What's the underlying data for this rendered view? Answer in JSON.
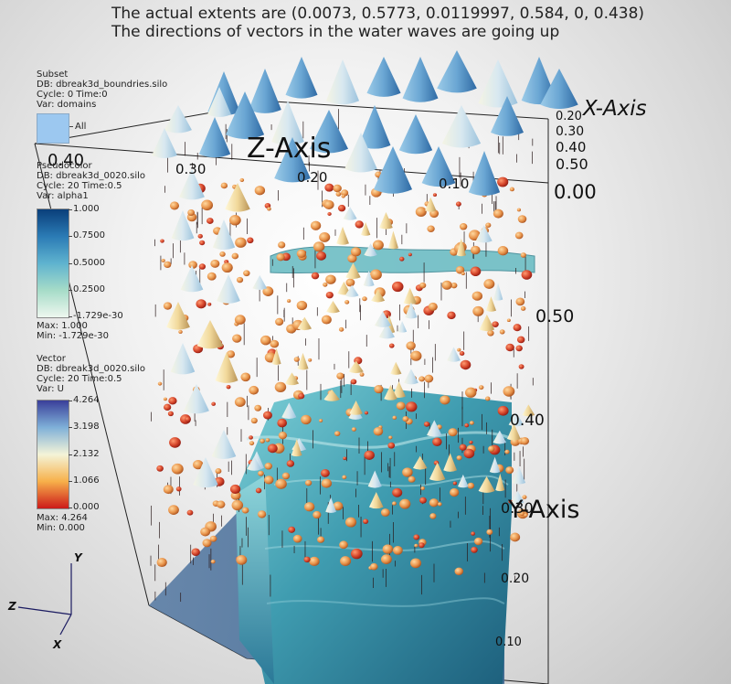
{
  "annotations": {
    "extents_text": "The actual extents are (0.0073, 0.5773, 0.0119997, 0.584, 0, 0.438)",
    "directions_text": "The directions of vectors in the water waves are going up"
  },
  "legend_subset": {
    "plot_type": "Subset",
    "db": "DB: dbreak3d_boundries.silo",
    "cycle_time": "Cycle: 0      Time:0",
    "var": "Var: domains",
    "item_label": "All",
    "swatch_color": "#9cc8f0"
  },
  "legend_pseudocolor": {
    "plot_type": "Pseudocolor",
    "db": "DB: dbreak3d_0020.silo",
    "cycle_time": "Cycle: 20     Time:0.5",
    "var": "Var: alpha1",
    "ticks": [
      "1.000",
      "0.7500",
      "0.5000",
      "0.2500",
      "-1.729e-30"
    ],
    "max": "Max:  1.000",
    "min": "Min:  -1.729e-30",
    "colors": [
      "#0a3f7a",
      "#2b7bb5",
      "#5fb3cf",
      "#a6dcc8",
      "#eef7ef"
    ]
  },
  "legend_vector": {
    "plot_type": "Vector",
    "db": "DB: dbreak3d_0020.silo",
    "cycle_time": "Cycle: 20     Time:0.5",
    "var": "Var: U",
    "ticks": [
      "4.264",
      "3.198",
      "2.132",
      "1.066",
      "0.000"
    ],
    "max": "Max:  4.264",
    "min": "Min:  0.000",
    "colors": [
      "#3a3f9a",
      "#7fb0d8",
      "#f4f4d8",
      "#f7b04a",
      "#cc1a1a"
    ]
  },
  "axes": {
    "x_title": "X-Axis",
    "y_title": "Y-Axis",
    "z_title": "Z-Axis",
    "x_ticks": [
      "0.20",
      "0.30",
      "0.40",
      "0.50",
      "0.00"
    ],
    "y_ticks": [
      "0.50",
      "0.40",
      "0.30",
      "0.20",
      "0.10"
    ],
    "z_ticks": [
      "0.40",
      "0.30",
      "0.20",
      "0.10"
    ],
    "triad": {
      "x": "X",
      "y": "Y",
      "z": "Z"
    }
  }
}
